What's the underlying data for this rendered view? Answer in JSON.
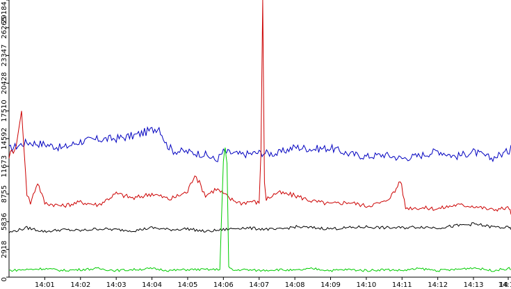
{
  "chart_data": {
    "type": "line",
    "title": "",
    "xlabel": "",
    "ylabel": "",
    "ylim": [
      0,
      29184
    ],
    "xlim_minutes": [
      0,
      14.05
    ],
    "y_ticks": [
      0,
      2918,
      5836,
      8755,
      11673,
      14592,
      17510,
      20428,
      23347,
      26265,
      29184
    ],
    "x_ticks": [
      {
        "label": "14:01",
        "minute": 1
      },
      {
        "label": "14:02",
        "minute": 2
      },
      {
        "label": "14:03",
        "minute": 3
      },
      {
        "label": "14:04",
        "minute": 4
      },
      {
        "label": "14:05",
        "minute": 5
      },
      {
        "label": "14:06",
        "minute": 6
      },
      {
        "label": "14:07",
        "minute": 7
      },
      {
        "label": "14:08",
        "minute": 8
      },
      {
        "label": "14:09",
        "minute": 9
      },
      {
        "label": "14:10",
        "minute": 10
      },
      {
        "label": "14:11",
        "minute": 11
      },
      {
        "label": "14:12",
        "minute": 12
      },
      {
        "label": "14:13",
        "minute": 13
      },
      {
        "label": "14:14",
        "minute": 14
      },
      {
        "label": "14",
        "minute": 14.6
      }
    ],
    "grid": false,
    "legend": "none",
    "series": [
      {
        "color": "#0000c0",
        "x": [
          0,
          0.5,
          1,
          1.5,
          2,
          2.5,
          3,
          3.5,
          4,
          4.2,
          4.4,
          4.6,
          5,
          5.5,
          5.8,
          6,
          6.5,
          7,
          7.5,
          8,
          8.5,
          9,
          9.5,
          10,
          10.5,
          11,
          11.5,
          12,
          12.5,
          13,
          13.5,
          14,
          14.05
        ],
        "y": [
          13500,
          14200,
          14000,
          13600,
          14300,
          14500,
          14600,
          14900,
          15500,
          15800,
          14000,
          13300,
          13200,
          12900,
          12300,
          13200,
          12900,
          13100,
          13000,
          13700,
          13500,
          13600,
          13000,
          12700,
          12900,
          12500,
          12800,
          13300,
          12700,
          13200,
          12500,
          13300,
          13900
        ]
      },
      {
        "color": "#cc0000",
        "x": [
          0,
          0.2,
          0.35,
          0.5,
          0.6,
          0.8,
          1,
          1.5,
          2,
          2.5,
          3,
          3.5,
          4,
          4.5,
          5,
          5.2,
          5.5,
          5.8,
          6,
          6.2,
          6.5,
          6.8,
          7,
          7.05,
          7.1,
          7.15,
          7.2,
          7.5,
          8,
          8.5,
          9,
          9.5,
          10,
          10.5,
          10.8,
          10.95,
          11.1,
          11.5,
          12,
          12.5,
          13,
          13.5,
          14,
          14.05
        ],
        "y": [
          12800,
          13800,
          17500,
          8800,
          7800,
          10000,
          7800,
          7500,
          7900,
          7600,
          8800,
          8300,
          8800,
          8200,
          9000,
          10900,
          8600,
          9300,
          8800,
          8200,
          7800,
          8000,
          7800,
          13000,
          29184,
          10000,
          8200,
          8900,
          8600,
          8000,
          7700,
          7900,
          7500,
          7900,
          9000,
          10300,
          7300,
          7300,
          7200,
          7600,
          7500,
          7100,
          7300,
          6600
        ]
      },
      {
        "color": "#000000",
        "x": [
          0,
          0.5,
          1,
          1.5,
          2,
          2.5,
          3,
          3.5,
          4,
          4.5,
          5,
          5.5,
          6,
          6.5,
          7,
          7.5,
          8,
          8.5,
          9,
          9.5,
          10,
          10.5,
          11,
          11.5,
          12,
          12.5,
          13,
          13.5,
          14,
          14.05
        ],
        "y": [
          4700,
          5200,
          4800,
          5000,
          4900,
          5100,
          5000,
          4900,
          5200,
          5000,
          5100,
          4800,
          5000,
          5200,
          5100,
          5000,
          5300,
          5200,
          5100,
          5200,
          5300,
          5200,
          5200,
          5300,
          5200,
          5400,
          5600,
          5300,
          5200,
          5000
        ]
      },
      {
        "color": "#00cc00",
        "x": [
          0,
          0.5,
          1,
          1.5,
          2,
          2.5,
          3,
          3.5,
          4,
          4.5,
          5,
          5.5,
          5.9,
          6,
          6.05,
          6.1,
          6.15,
          6.3,
          6.5,
          7,
          7.5,
          8,
          8.5,
          9,
          9.5,
          10,
          10.5,
          11,
          11.5,
          12,
          12.5,
          13,
          13.5,
          14,
          14.05
        ],
        "y": [
          700,
          800,
          900,
          700,
          800,
          900,
          700,
          800,
          900,
          700,
          800,
          800,
          800,
          12500,
          13500,
          12000,
          1000,
          700,
          800,
          700,
          800,
          700,
          900,
          700,
          800,
          700,
          800,
          700,
          900,
          700,
          800,
          1000,
          700,
          900,
          800
        ]
      }
    ]
  }
}
